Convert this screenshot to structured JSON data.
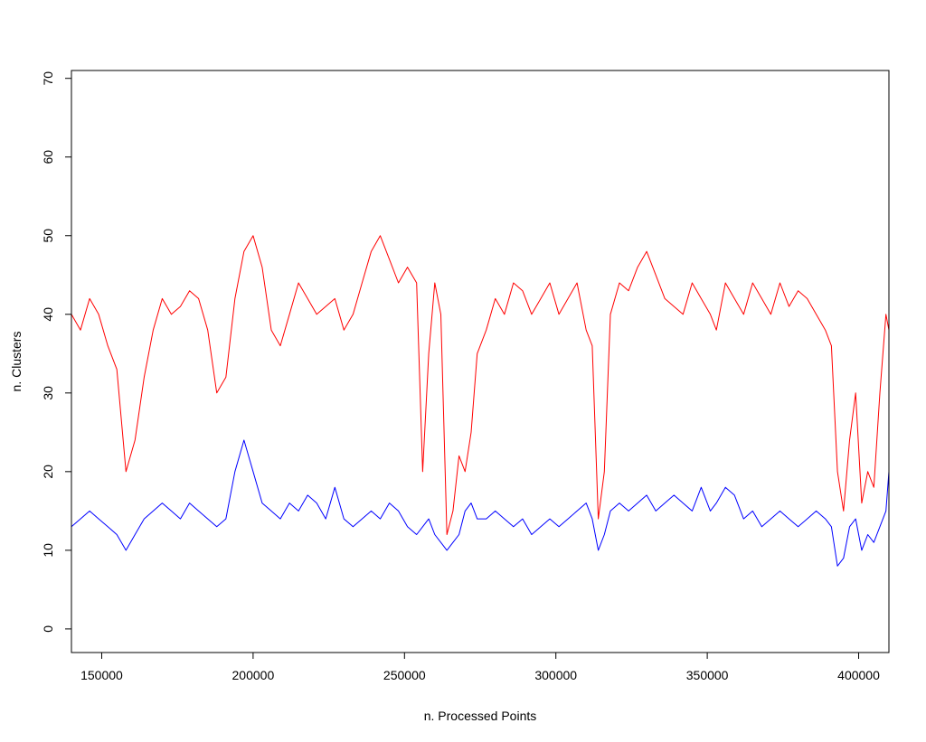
{
  "chart_data": {
    "type": "line",
    "title": "",
    "xlabel": "n. Processed Points",
    "ylabel": "n. Clusters",
    "xlim": [
      140000,
      410000
    ],
    "ylim": [
      -3,
      71
    ],
    "x_ticks": [
      150000,
      200000,
      250000,
      300000,
      350000,
      400000
    ],
    "x_tick_labels": [
      "150000",
      "200000",
      "250000",
      "300000",
      "350000",
      "400000"
    ],
    "y_ticks": [
      0,
      10,
      20,
      30,
      40,
      50,
      60,
      70
    ],
    "y_tick_labels": [
      "0",
      "10",
      "20",
      "30",
      "40",
      "50",
      "60",
      "70"
    ],
    "grid": false,
    "legend": "none",
    "series": [
      {
        "color": "#ff0000",
        "x": [
          140000,
          143000,
          146000,
          149000,
          152000,
          155000,
          158000,
          161000,
          164000,
          167000,
          170000,
          173000,
          176000,
          179000,
          182000,
          185000,
          188000,
          191000,
          194000,
          197000,
          200000,
          203000,
          206000,
          209000,
          212000,
          215000,
          218000,
          221000,
          224000,
          227000,
          230000,
          233000,
          236000,
          239000,
          242000,
          245000,
          248000,
          251000,
          254000,
          256000,
          258000,
          260000,
          262000,
          264000,
          266000,
          268000,
          270000,
          272000,
          274000,
          277000,
          280000,
          283000,
          286000,
          289000,
          292000,
          295000,
          298000,
          301000,
          304000,
          307000,
          310000,
          312000,
          314000,
          316000,
          318000,
          321000,
          324000,
          327000,
          330000,
          333000,
          336000,
          339000,
          342000,
          345000,
          348000,
          351000,
          353000,
          356000,
          359000,
          362000,
          365000,
          368000,
          371000,
          374000,
          377000,
          380000,
          383000,
          386000,
          389000,
          391000,
          393000,
          395000,
          397000,
          399000,
          401000,
          403000,
          405000,
          407000,
          409000,
          410000
        ],
        "y": [
          40,
          38,
          42,
          40,
          36,
          33,
          20,
          24,
          32,
          38,
          42,
          40,
          41,
          43,
          42,
          38,
          30,
          32,
          42,
          48,
          50,
          46,
          38,
          36,
          40,
          44,
          42,
          40,
          41,
          42,
          38,
          40,
          44,
          48,
          50,
          47,
          44,
          46,
          44,
          20,
          35,
          44,
          40,
          12,
          15,
          22,
          20,
          25,
          35,
          38,
          42,
          40,
          44,
          43,
          40,
          42,
          44,
          40,
          42,
          44,
          38,
          36,
          14,
          20,
          40,
          44,
          43,
          46,
          48,
          45,
          42,
          41,
          40,
          44,
          42,
          40,
          38,
          44,
          42,
          40,
          44,
          42,
          40,
          44,
          41,
          43,
          42,
          40,
          38,
          36,
          20,
          15,
          24,
          30,
          16,
          20,
          18,
          30,
          40,
          38
        ]
      },
      {
        "color": "#0000ff",
        "x": [
          140000,
          143000,
          146000,
          149000,
          152000,
          155000,
          158000,
          161000,
          164000,
          167000,
          170000,
          173000,
          176000,
          179000,
          182000,
          185000,
          188000,
          191000,
          194000,
          197000,
          200000,
          203000,
          206000,
          209000,
          212000,
          215000,
          218000,
          221000,
          224000,
          227000,
          230000,
          233000,
          236000,
          239000,
          242000,
          245000,
          248000,
          251000,
          254000,
          256000,
          258000,
          260000,
          262000,
          264000,
          266000,
          268000,
          270000,
          272000,
          274000,
          277000,
          280000,
          283000,
          286000,
          289000,
          292000,
          295000,
          298000,
          301000,
          304000,
          307000,
          310000,
          312000,
          314000,
          316000,
          318000,
          321000,
          324000,
          327000,
          330000,
          333000,
          336000,
          339000,
          342000,
          345000,
          348000,
          351000,
          353000,
          356000,
          359000,
          362000,
          365000,
          368000,
          371000,
          374000,
          377000,
          380000,
          383000,
          386000,
          389000,
          391000,
          393000,
          395000,
          397000,
          399000,
          401000,
          403000,
          405000,
          407000,
          409000,
          410000
        ],
        "y": [
          13,
          14,
          15,
          14,
          13,
          12,
          10,
          12,
          14,
          15,
          16,
          15,
          14,
          16,
          15,
          14,
          13,
          14,
          20,
          24,
          20,
          16,
          15,
          14,
          16,
          15,
          17,
          16,
          14,
          18,
          14,
          13,
          14,
          15,
          14,
          16,
          15,
          13,
          12,
          13,
          14,
          12,
          11,
          10,
          11,
          12,
          15,
          16,
          14,
          14,
          15,
          14,
          13,
          14,
          12,
          13,
          14,
          13,
          14,
          15,
          16,
          14,
          10,
          12,
          15,
          16,
          15,
          16,
          17,
          15,
          16,
          17,
          16,
          15,
          18,
          15,
          16,
          18,
          17,
          14,
          15,
          13,
          14,
          15,
          14,
          13,
          14,
          15,
          14,
          13,
          8,
          9,
          13,
          14,
          10,
          12,
          11,
          13,
          15,
          20
        ]
      }
    ]
  }
}
